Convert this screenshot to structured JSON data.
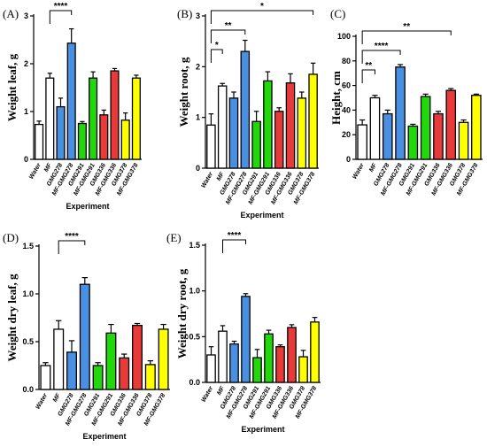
{
  "colors": {
    "Water": "#ffffff",
    "MF": "#ffffff",
    "GMG278": "#4a90e2",
    "MF-GMG278": "#4a90e2",
    "GMG291": "#22d80d",
    "MF-GMG291": "#22d80d",
    "GMG336": "#e93a3a",
    "MF-GMG336": "#e93a3a",
    "GMG378": "#ffff00",
    "MF-GMG378": "#ffff00"
  },
  "chart_data": [
    {
      "panel": "(A)",
      "type": "bar",
      "ylabel": "Weight leaf, g",
      "xlabel": "Experiment",
      "ylim": [
        0,
        3
      ],
      "yticks": [
        0,
        1,
        2,
        3
      ],
      "categories": [
        "Water",
        "MF",
        "GMG278",
        "MF-GMG278",
        "GMG291",
        "MF-GMG291",
        "GMG336",
        "MF-GMG336",
        "GMG378",
        "MF-GMG378"
      ],
      "values": [
        0.73,
        1.7,
        1.1,
        2.43,
        0.75,
        1.7,
        0.93,
        1.85,
        0.82,
        1.7
      ],
      "errors": [
        0.07,
        0.1,
        0.18,
        0.3,
        0.04,
        0.13,
        0.1,
        0.05,
        0.15,
        0.06
      ],
      "significance": [
        {
          "from": 1,
          "to": 3,
          "label": "****"
        }
      ]
    },
    {
      "panel": "(B)",
      "type": "bar",
      "ylabel": "Weight root, g",
      "xlabel": "Experiment",
      "ylim": [
        0,
        3
      ],
      "yticks": [
        0,
        1,
        2,
        3
      ],
      "categories": [
        "Water",
        "MF",
        "GMG278",
        "MF-GMG278",
        "GMG291",
        "MF-GMG291",
        "GMG336",
        "MF-GMG336",
        "GMG378",
        "MF-GMG378"
      ],
      "values": [
        0.85,
        1.62,
        1.38,
        2.3,
        0.92,
        1.72,
        1.12,
        1.68,
        1.38,
        1.85
      ],
      "errors": [
        0.22,
        0.05,
        0.12,
        0.22,
        0.2,
        0.18,
        0.07,
        0.18,
        0.12,
        0.22
      ],
      "significance": [
        {
          "from": 0,
          "to": 1,
          "label": "*"
        },
        {
          "from": 0,
          "to": 3,
          "label": "**"
        },
        {
          "from": 0,
          "to": 9,
          "label": "*"
        }
      ]
    },
    {
      "panel": "(C)",
      "type": "bar",
      "ylabel": "Height, cm",
      "xlabel": "",
      "ylim": [
        0,
        100
      ],
      "yticks": [
        0,
        20,
        40,
        60,
        80,
        100
      ],
      "categories": [
        "Water",
        "MF",
        "GMG278",
        "MF-GMG278",
        "GMG291",
        "MF-GMG291",
        "GMG336",
        "MF-GMG336",
        "GMG378",
        "MF-GMG378"
      ],
      "values": [
        28,
        50,
        37,
        75,
        27,
        51,
        37,
        56,
        30,
        52
      ],
      "errors": [
        4,
        2,
        3,
        2,
        1.5,
        2,
        2,
        1.5,
        2,
        1
      ],
      "significance": [
        {
          "from": 0,
          "to": 1,
          "label": "**"
        },
        {
          "from": 0,
          "to": 3,
          "label": "****"
        },
        {
          "from": 0,
          "to": 7,
          "label": "**"
        }
      ]
    },
    {
      "panel": "(D)",
      "type": "bar",
      "ylabel": "Weight dry leaf, g",
      "xlabel": "Experiment",
      "ylim": [
        0,
        1.5
      ],
      "yticks": [
        0,
        0.5,
        1.0,
        1.5
      ],
      "categories": [
        "Water",
        "MF",
        "GMG278",
        "MF-GMG278",
        "GMG291",
        "MF-GMG291",
        "GMG336",
        "MF-GMG336",
        "GMG378",
        "MF-GMG378"
      ],
      "values": [
        0.25,
        0.63,
        0.39,
        1.1,
        0.25,
        0.59,
        0.33,
        0.67,
        0.26,
        0.63
      ],
      "errors": [
        0.03,
        0.09,
        0.12,
        0.07,
        0.03,
        0.09,
        0.04,
        0.02,
        0.04,
        0.05
      ],
      "significance": [
        {
          "from": 1,
          "to": 3,
          "label": "****"
        }
      ]
    },
    {
      "panel": "(E)",
      "type": "bar",
      "ylabel": "Weight dry root, g",
      "xlabel": "Experiment",
      "ylim": [
        0,
        1.5
      ],
      "yticks": [
        0,
        0.5,
        1.0,
        1.5
      ],
      "categories": [
        "Water",
        "MF",
        "GMG278",
        "MF-GMG278",
        "GMG291",
        "MF-GMG291",
        "GMG336",
        "MF-GMG336",
        "GMG378",
        "MF-GMG378"
      ],
      "values": [
        0.3,
        0.56,
        0.42,
        0.94,
        0.27,
        0.53,
        0.39,
        0.6,
        0.28,
        0.66
      ],
      "errors": [
        0.09,
        0.06,
        0.03,
        0.03,
        0.09,
        0.04,
        0.02,
        0.03,
        0.07,
        0.05
      ],
      "significance": [
        {
          "from": 1,
          "to": 3,
          "label": "****"
        }
      ]
    }
  ]
}
